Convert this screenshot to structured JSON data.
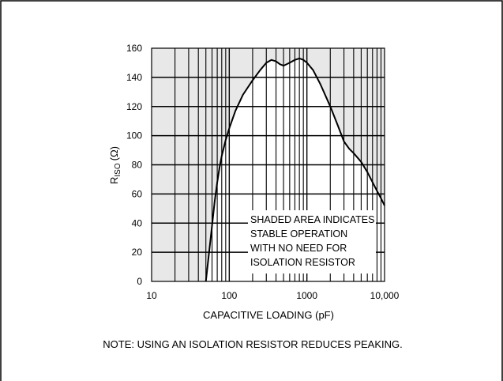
{
  "chart_data": {
    "type": "line",
    "title": "",
    "xlabel": "CAPACITIVE LOADING (pF)",
    "ylabel_main": "R",
    "ylabel_sub": "ISO",
    "ylabel_unit": "(Ω)",
    "x_scale": "log",
    "xlim": [
      10,
      10000
    ],
    "ylim": [
      0,
      160
    ],
    "x_ticks": [
      10,
      100,
      1000,
      10000
    ],
    "x_tick_labels": [
      "10",
      "100",
      "1000",
      "10,000"
    ],
    "y_ticks": [
      0,
      20,
      40,
      60,
      80,
      100,
      120,
      140,
      160
    ],
    "y_tick_labels": [
      "0",
      "20",
      "40",
      "60",
      "80",
      "100",
      "120",
      "140",
      "160"
    ],
    "grid": true,
    "shaded_background": "#e8e8e8",
    "series": [
      {
        "x": [
          50,
          55,
          60,
          65,
          70,
          75,
          80,
          90,
          100,
          120,
          150,
          200,
          250,
          300,
          350,
          400,
          450,
          500,
          600,
          700,
          800,
          900,
          1000,
          1200,
          1500,
          2000,
          2500,
          3000,
          3500,
          4000,
          5000,
          6000,
          7000,
          8000,
          9000,
          10000
        ],
        "y": [
          0,
          20,
          38,
          55,
          68,
          78,
          86,
          97,
          105,
          117,
          128,
          138,
          145,
          150,
          152,
          151,
          149,
          148,
          150,
          152,
          153,
          152,
          150,
          145,
          135,
          120,
          107,
          96,
          91,
          88,
          82,
          75,
          68,
          62,
          57,
          52
        ]
      }
    ],
    "annotation": [
      "SHADED AREA INDICATES",
      "STABLE OPERATION",
      "WITH NO NEED FOR",
      "ISOLATION RESISTOR"
    ],
    "note": "NOTE: USING AN ISOLATION RESISTOR REDUCES PEAKING."
  }
}
